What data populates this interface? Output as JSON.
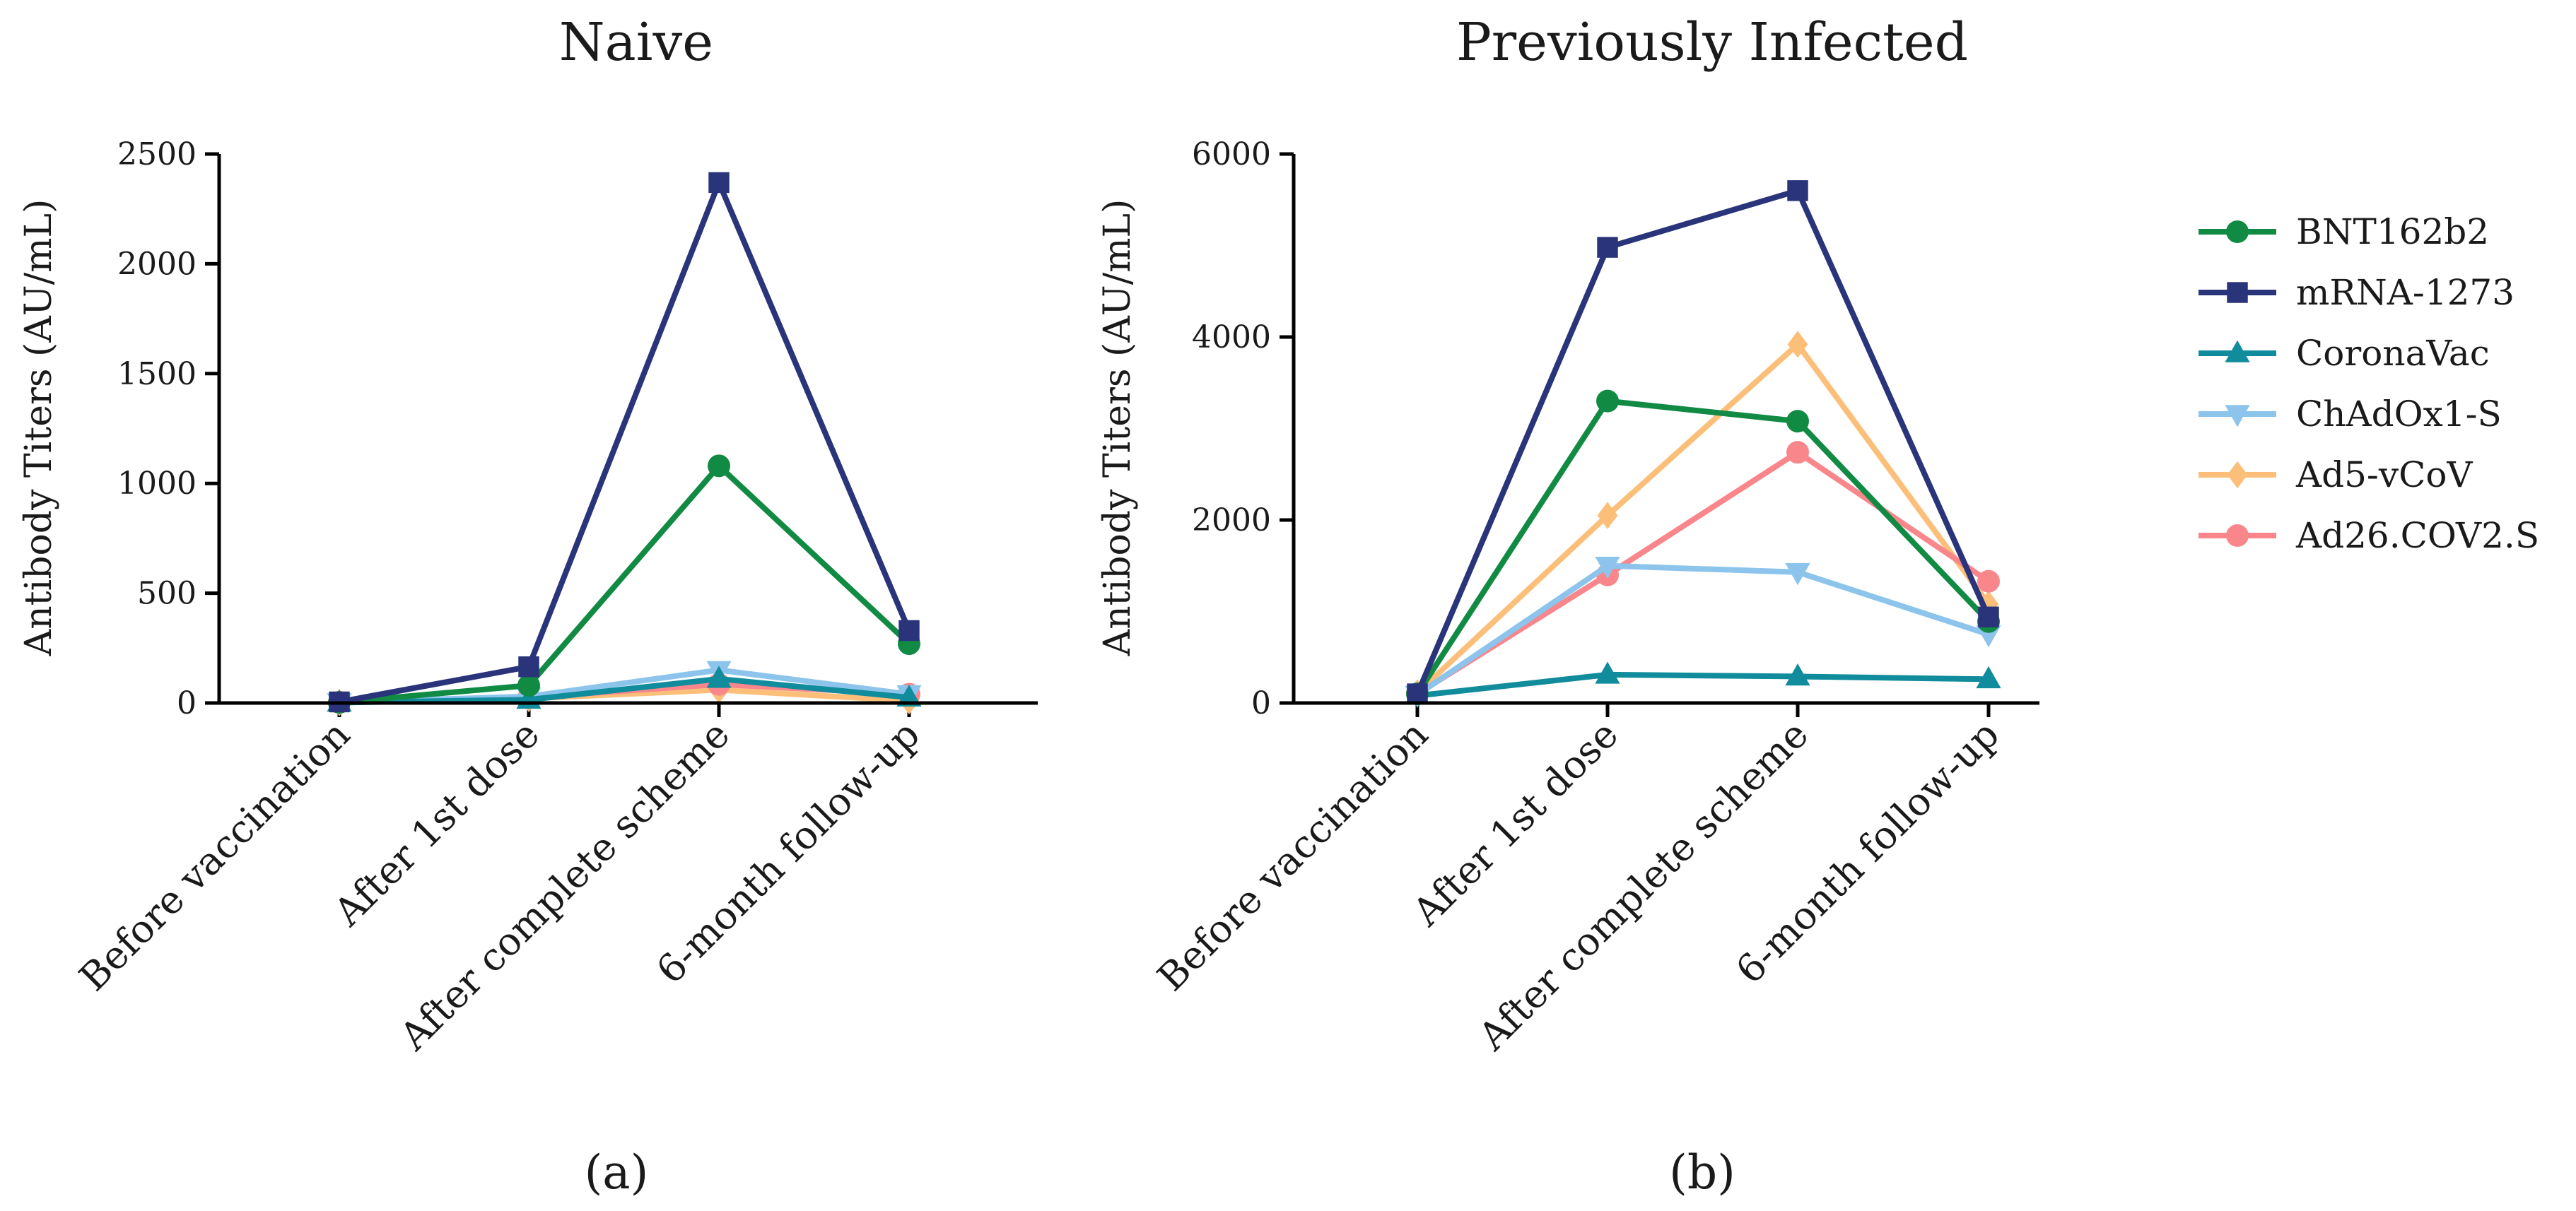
{
  "chart_data": [
    {
      "type": "line",
      "title": "Naive",
      "panel_label": "(a)",
      "xlabel": "",
      "ylabel": "Antibody Titers (AU/mL)",
      "ylim": [
        0,
        2500
      ],
      "yticks": [
        0,
        500,
        1000,
        1500,
        2000,
        2500
      ],
      "categories": [
        "Before vaccination",
        "After 1st dose",
        "After complete scheme",
        "6-month follow-up"
      ],
      "series": [
        {
          "name": "Ad5-vCoV",
          "color": "#fcbf7a",
          "marker": "diamond",
          "values": [
            2,
            20,
            60,
            10
          ]
        },
        {
          "name": "Ad26.COV2.S",
          "color": "#f9868b",
          "marker": "circle",
          "values": [
            2,
            25,
            85,
            40
          ]
        },
        {
          "name": "ChAdOx1-S",
          "color": "#8cc4ec",
          "marker": "triangle-down",
          "values": [
            3,
            30,
            150,
            40
          ]
        },
        {
          "name": "CoronaVac",
          "color": "#118c9c",
          "marker": "triangle-up",
          "values": [
            2,
            15,
            110,
            25
          ]
        },
        {
          "name": "BNT162b2",
          "color": "#118a44",
          "marker": "circle",
          "values": [
            3,
            80,
            1080,
            270
          ]
        },
        {
          "name": "mRNA-1273",
          "color": "#29347a",
          "marker": "square",
          "values": [
            5,
            165,
            2370,
            330
          ]
        }
      ]
    },
    {
      "type": "line",
      "title": "Previously Infected",
      "panel_label": "(b)",
      "xlabel": "",
      "ylabel": "Antibody Titers (AU/mL)",
      "ylim": [
        0,
        6000
      ],
      "yticks": [
        0,
        2000,
        4000,
        6000
      ],
      "categories": [
        "Before vaccination",
        "After 1st dose",
        "After complete scheme",
        "6-month follow-up"
      ],
      "series": [
        {
          "name": "Ad5-vCoV",
          "color": "#fcbf7a",
          "marker": "diamond",
          "values": [
            110,
            2050,
            3920,
            1080
          ]
        },
        {
          "name": "Ad26.COV2.S",
          "color": "#f9868b",
          "marker": "circle",
          "values": [
            100,
            1400,
            2740,
            1330
          ]
        },
        {
          "name": "ChAdOx1-S",
          "color": "#8cc4ec",
          "marker": "triangle-down",
          "values": [
            90,
            1500,
            1430,
            750
          ]
        },
        {
          "name": "CoronaVac",
          "color": "#118c9c",
          "marker": "triangle-up",
          "values": [
            80,
            310,
            290,
            260
          ]
        },
        {
          "name": "BNT162b2",
          "color": "#118a44",
          "marker": "circle",
          "values": [
            100,
            3300,
            3080,
            890
          ]
        },
        {
          "name": "mRNA-1273",
          "color": "#29347a",
          "marker": "square",
          "values": [
            100,
            4980,
            5600,
            940
          ]
        }
      ]
    }
  ],
  "legend": [
    {
      "name": "BNT162b2",
      "color": "#118a44",
      "marker": "circle"
    },
    {
      "name": "mRNA-1273",
      "color": "#29347a",
      "marker": "square"
    },
    {
      "name": "CoronaVac",
      "color": "#118c9c",
      "marker": "triangle-up"
    },
    {
      "name": "ChAdOx1-S",
      "color": "#8cc4ec",
      "marker": "triangle-down"
    },
    {
      "name": "Ad5-vCoV",
      "color": "#fcbf7a",
      "marker": "diamond"
    },
    {
      "name": "Ad26.COV2.S",
      "color": "#f9868b",
      "marker": "circle"
    }
  ]
}
